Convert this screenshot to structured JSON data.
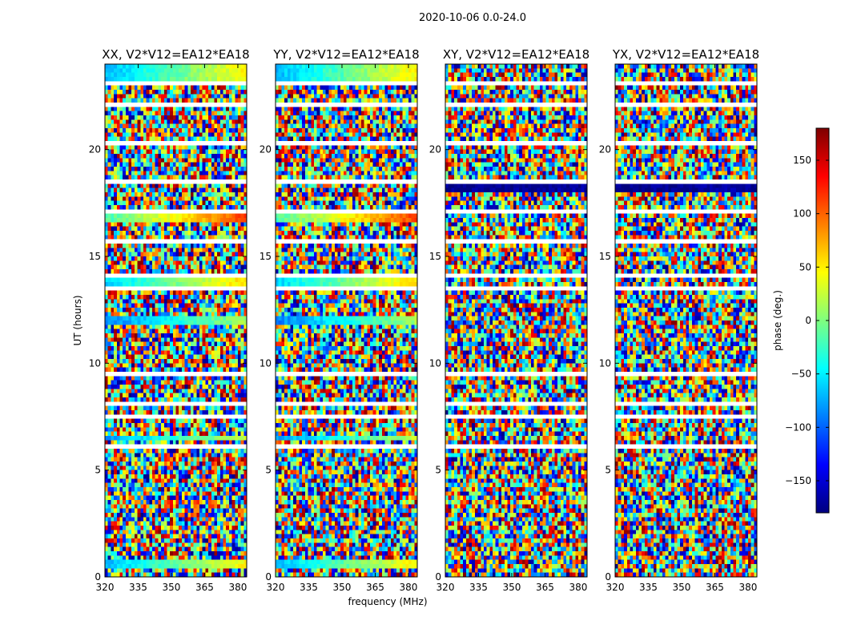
{
  "chart_data": {
    "type": "heatmap",
    "suptitle": "2020-10-06 0.0-24.0",
    "xlabel": "frequency (MHz)",
    "ylabel": "UT (hours)",
    "xlim": [
      320,
      384
    ],
    "ylim": [
      0,
      24
    ],
    "xticks": [
      320,
      335,
      350,
      365,
      380
    ],
    "yticks": [
      0,
      5,
      10,
      15,
      20
    ],
    "colorbar": {
      "label": "phase (deg.)",
      "range": [
        -180,
        180
      ],
      "ticks": [
        150,
        100,
        50,
        0,
        -50,
        -100,
        -150
      ],
      "tick_labels": [
        "150",
        "100",
        "50",
        "0",
        "−50",
        "−100",
        "−150"
      ],
      "colormap": "jet",
      "stops": [
        "#00007f",
        "#0000ff",
        "#007fff",
        "#00ffff",
        "#7fff7f",
        "#ffff00",
        "#ff7f00",
        "#ff0000",
        "#7f0000"
      ]
    },
    "panels": [
      {
        "title": "XX, V2*V12=EA12*EA18",
        "seed": 11
      },
      {
        "title": "YY, V2*V12=EA12*EA18",
        "seed": 23
      },
      {
        "title": "XY, V2*V12=EA12*EA18",
        "seed": 37
      },
      {
        "title": "YX, V2*V12=EA12*EA18",
        "seed": 53
      }
    ]
  }
}
